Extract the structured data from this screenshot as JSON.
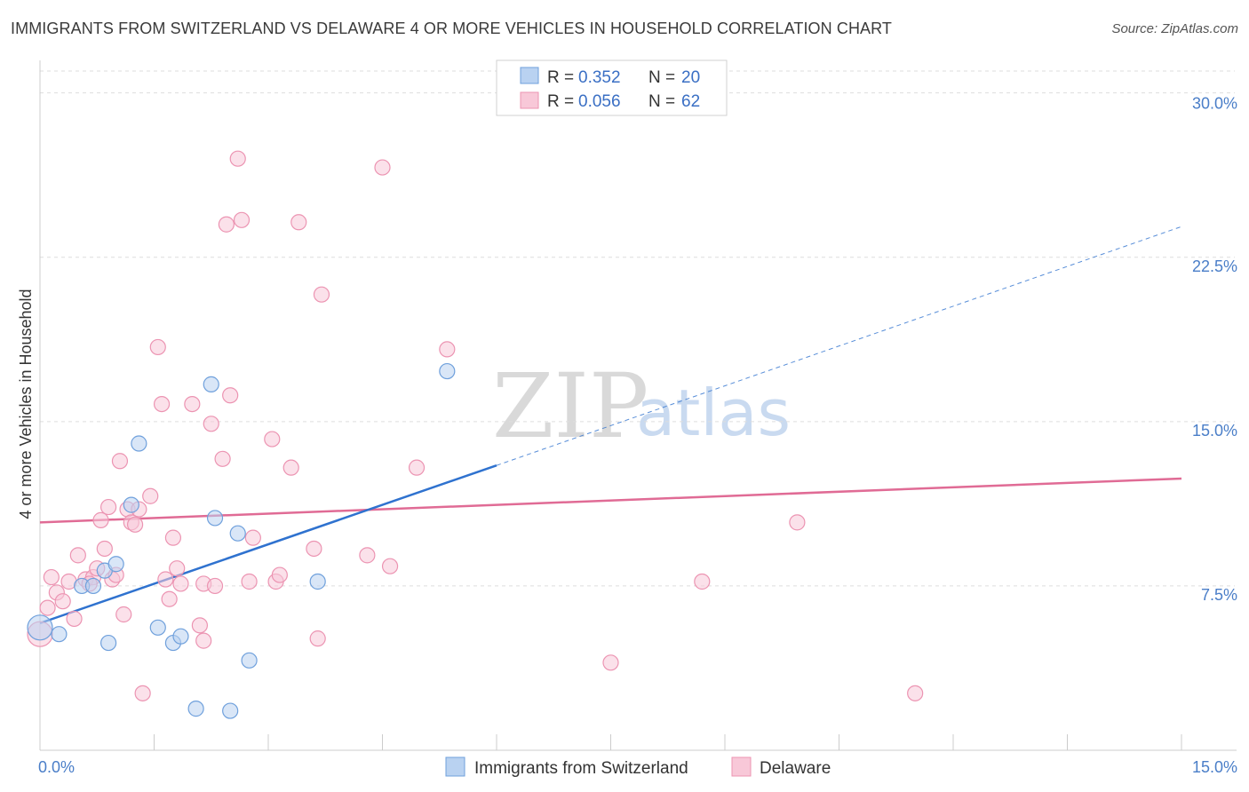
{
  "title": "IMMIGRANTS FROM SWITZERLAND VS DELAWARE 4 OR MORE VEHICLES IN HOUSEHOLD CORRELATION CHART",
  "source": "Source: ZipAtlas.com",
  "watermark": {
    "zip": "ZIP",
    "atlas": "atlas"
  },
  "chart_data": {
    "type": "scatter",
    "title": "IMMIGRANTS FROM SWITZERLAND VS DELAWARE 4 OR MORE VEHICLES IN HOUSEHOLD CORRELATION CHART",
    "xlabel": "",
    "ylabel": "4 or more Vehicles in Household",
    "xlim": [
      0,
      15
    ],
    "ylim": [
      0,
      31
    ],
    "x_tick_labels": [
      {
        "value": 0,
        "label": "0.0%"
      },
      {
        "value": 15,
        "label": "15.0%"
      }
    ],
    "x_minor_ticks": [
      1.5,
      3.0,
      4.5,
      6.0,
      7.5,
      9.0,
      10.5,
      12.0,
      13.5,
      15.0
    ],
    "y_ticks": [
      {
        "value": 7.5,
        "label": "7.5%"
      },
      {
        "value": 15.0,
        "label": "15.0%"
      },
      {
        "value": 22.5,
        "label": "22.5%"
      },
      {
        "value": 30.0,
        "label": "30.0%"
      }
    ],
    "legend": {
      "placement": "top-center",
      "rows": [
        {
          "r_label": "R =",
          "r_value": "0.352",
          "n_label": "N =",
          "n_value": "20"
        },
        {
          "r_label": "R =",
          "r_value": "0.056",
          "n_label": "N =",
          "n_value": "62"
        }
      ]
    },
    "series": [
      {
        "name": "Immigrants from Switzerland",
        "color": "#6fa0dc",
        "fill": "#b9d2f1",
        "line_color": "#2f72cf",
        "trend": {
          "x0": 0,
          "y0": 5.8,
          "x1": 6.0,
          "y1": 13.0,
          "dash_to_x": 15,
          "dash_to_y": 23.9
        },
        "points": [
          [
            0.0,
            5.6
          ],
          [
            0.25,
            5.3
          ],
          [
            0.55,
            7.5
          ],
          [
            0.7,
            7.5
          ],
          [
            0.85,
            8.2
          ],
          [
            0.9,
            4.9
          ],
          [
            1.0,
            8.5
          ],
          [
            1.2,
            11.2
          ],
          [
            1.3,
            14.0
          ],
          [
            1.55,
            5.6
          ],
          [
            1.75,
            4.9
          ],
          [
            1.85,
            5.2
          ],
          [
            2.05,
            1.9
          ],
          [
            2.25,
            16.7
          ],
          [
            2.3,
            10.6
          ],
          [
            2.5,
            1.8
          ],
          [
            2.6,
            9.9
          ],
          [
            2.75,
            4.1
          ],
          [
            3.65,
            7.7
          ],
          [
            5.35,
            17.3
          ]
        ]
      },
      {
        "name": "Delaware",
        "color": "#ec94b2",
        "fill": "#f8c8d8",
        "line_color": "#e06b95",
        "trend": {
          "x0": 0,
          "y0": 10.4,
          "x1": 15,
          "y1": 12.4
        },
        "points": [
          [
            0.0,
            5.3
          ],
          [
            0.1,
            6.5
          ],
          [
            0.15,
            7.9
          ],
          [
            0.22,
            7.2
          ],
          [
            0.3,
            6.8
          ],
          [
            0.38,
            7.7
          ],
          [
            0.45,
            6.0
          ],
          [
            0.5,
            8.9
          ],
          [
            0.6,
            7.8
          ],
          [
            0.7,
            7.9
          ],
          [
            0.75,
            8.3
          ],
          [
            0.8,
            10.5
          ],
          [
            0.85,
            9.2
          ],
          [
            0.9,
            11.1
          ],
          [
            0.95,
            7.8
          ],
          [
            1.0,
            8.0
          ],
          [
            1.05,
            13.2
          ],
          [
            1.1,
            6.2
          ],
          [
            1.15,
            11.0
          ],
          [
            1.2,
            10.4
          ],
          [
            1.3,
            11.0
          ],
          [
            1.35,
            2.6
          ],
          [
            1.45,
            11.6
          ],
          [
            1.55,
            18.4
          ],
          [
            1.6,
            15.8
          ],
          [
            1.65,
            7.8
          ],
          [
            1.7,
            6.9
          ],
          [
            1.75,
            9.7
          ],
          [
            1.8,
            8.3
          ],
          [
            1.85,
            7.6
          ],
          [
            2.0,
            15.8
          ],
          [
            2.1,
            5.7
          ],
          [
            2.15,
            7.6
          ],
          [
            2.25,
            14.9
          ],
          [
            2.3,
            7.5
          ],
          [
            2.4,
            13.3
          ],
          [
            2.45,
            24.0
          ],
          [
            2.5,
            16.2
          ],
          [
            2.6,
            27.0
          ],
          [
            2.65,
            24.2
          ],
          [
            2.75,
            7.7
          ],
          [
            2.8,
            9.7
          ],
          [
            3.05,
            14.2
          ],
          [
            3.1,
            7.7
          ],
          [
            3.15,
            8.0
          ],
          [
            3.3,
            12.9
          ],
          [
            3.4,
            24.1
          ],
          [
            3.6,
            9.2
          ],
          [
            3.7,
            20.8
          ],
          [
            3.65,
            5.1
          ],
          [
            4.3,
            8.9
          ],
          [
            4.5,
            26.6
          ],
          [
            4.6,
            8.4
          ],
          [
            4.95,
            12.9
          ],
          [
            5.35,
            18.3
          ],
          [
            7.5,
            4.0
          ],
          [
            8.7,
            7.7
          ],
          [
            9.95,
            10.4
          ],
          [
            11.5,
            2.6
          ],
          [
            2.15,
            5.0
          ],
          [
            0.65,
            7.6
          ],
          [
            1.25,
            10.3
          ]
        ]
      }
    ]
  },
  "bottom_legend": [
    {
      "label": "Immigrants from Switzerland",
      "color": "#b9d2f1",
      "border": "#6fa0dc"
    },
    {
      "label": "Delaware",
      "color": "#f8c8d8",
      "border": "#ec94b2"
    }
  ]
}
